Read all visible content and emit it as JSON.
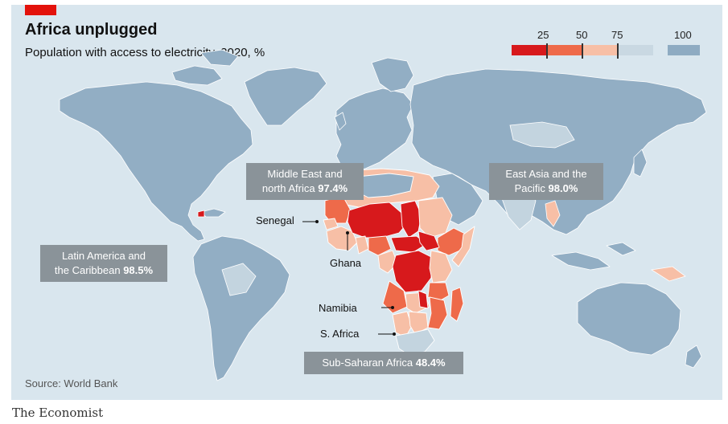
{
  "header": {
    "title": "Africa unplugged",
    "subtitle": "Population with access to electricity, 2020, %"
  },
  "legend": {
    "ticks": [
      "25",
      "50",
      "75",
      "100"
    ],
    "colors": [
      "#d7191c",
      "#ee6a4a",
      "#f7bfa6",
      "#c9d8e2",
      "#8eabc2"
    ]
  },
  "colors": {
    "ocean": "#d9e6ee",
    "land_full": "#92aec4",
    "land_high": "#c3d4df",
    "borders": "#ffffff",
    "callout": "#8a9399",
    "brand_red": "#e3120b"
  },
  "regions": [
    {
      "name": "Middle East and",
      "name2": "north Africa",
      "value": "97.4%"
    },
    {
      "name": "East Asia and the",
      "name2": "Pacific",
      "value": "98.0%"
    },
    {
      "name": "Latin America and",
      "name2": "the Caribbean",
      "value": "98.5%"
    },
    {
      "name": "Sub-Saharan Africa",
      "name2": "",
      "value": "48.4%"
    }
  ],
  "country_labels": [
    "Senegal",
    "Ghana",
    "Namibia",
    "S. Africa"
  ],
  "source": "Source: World Bank",
  "brand": "The Economist"
}
